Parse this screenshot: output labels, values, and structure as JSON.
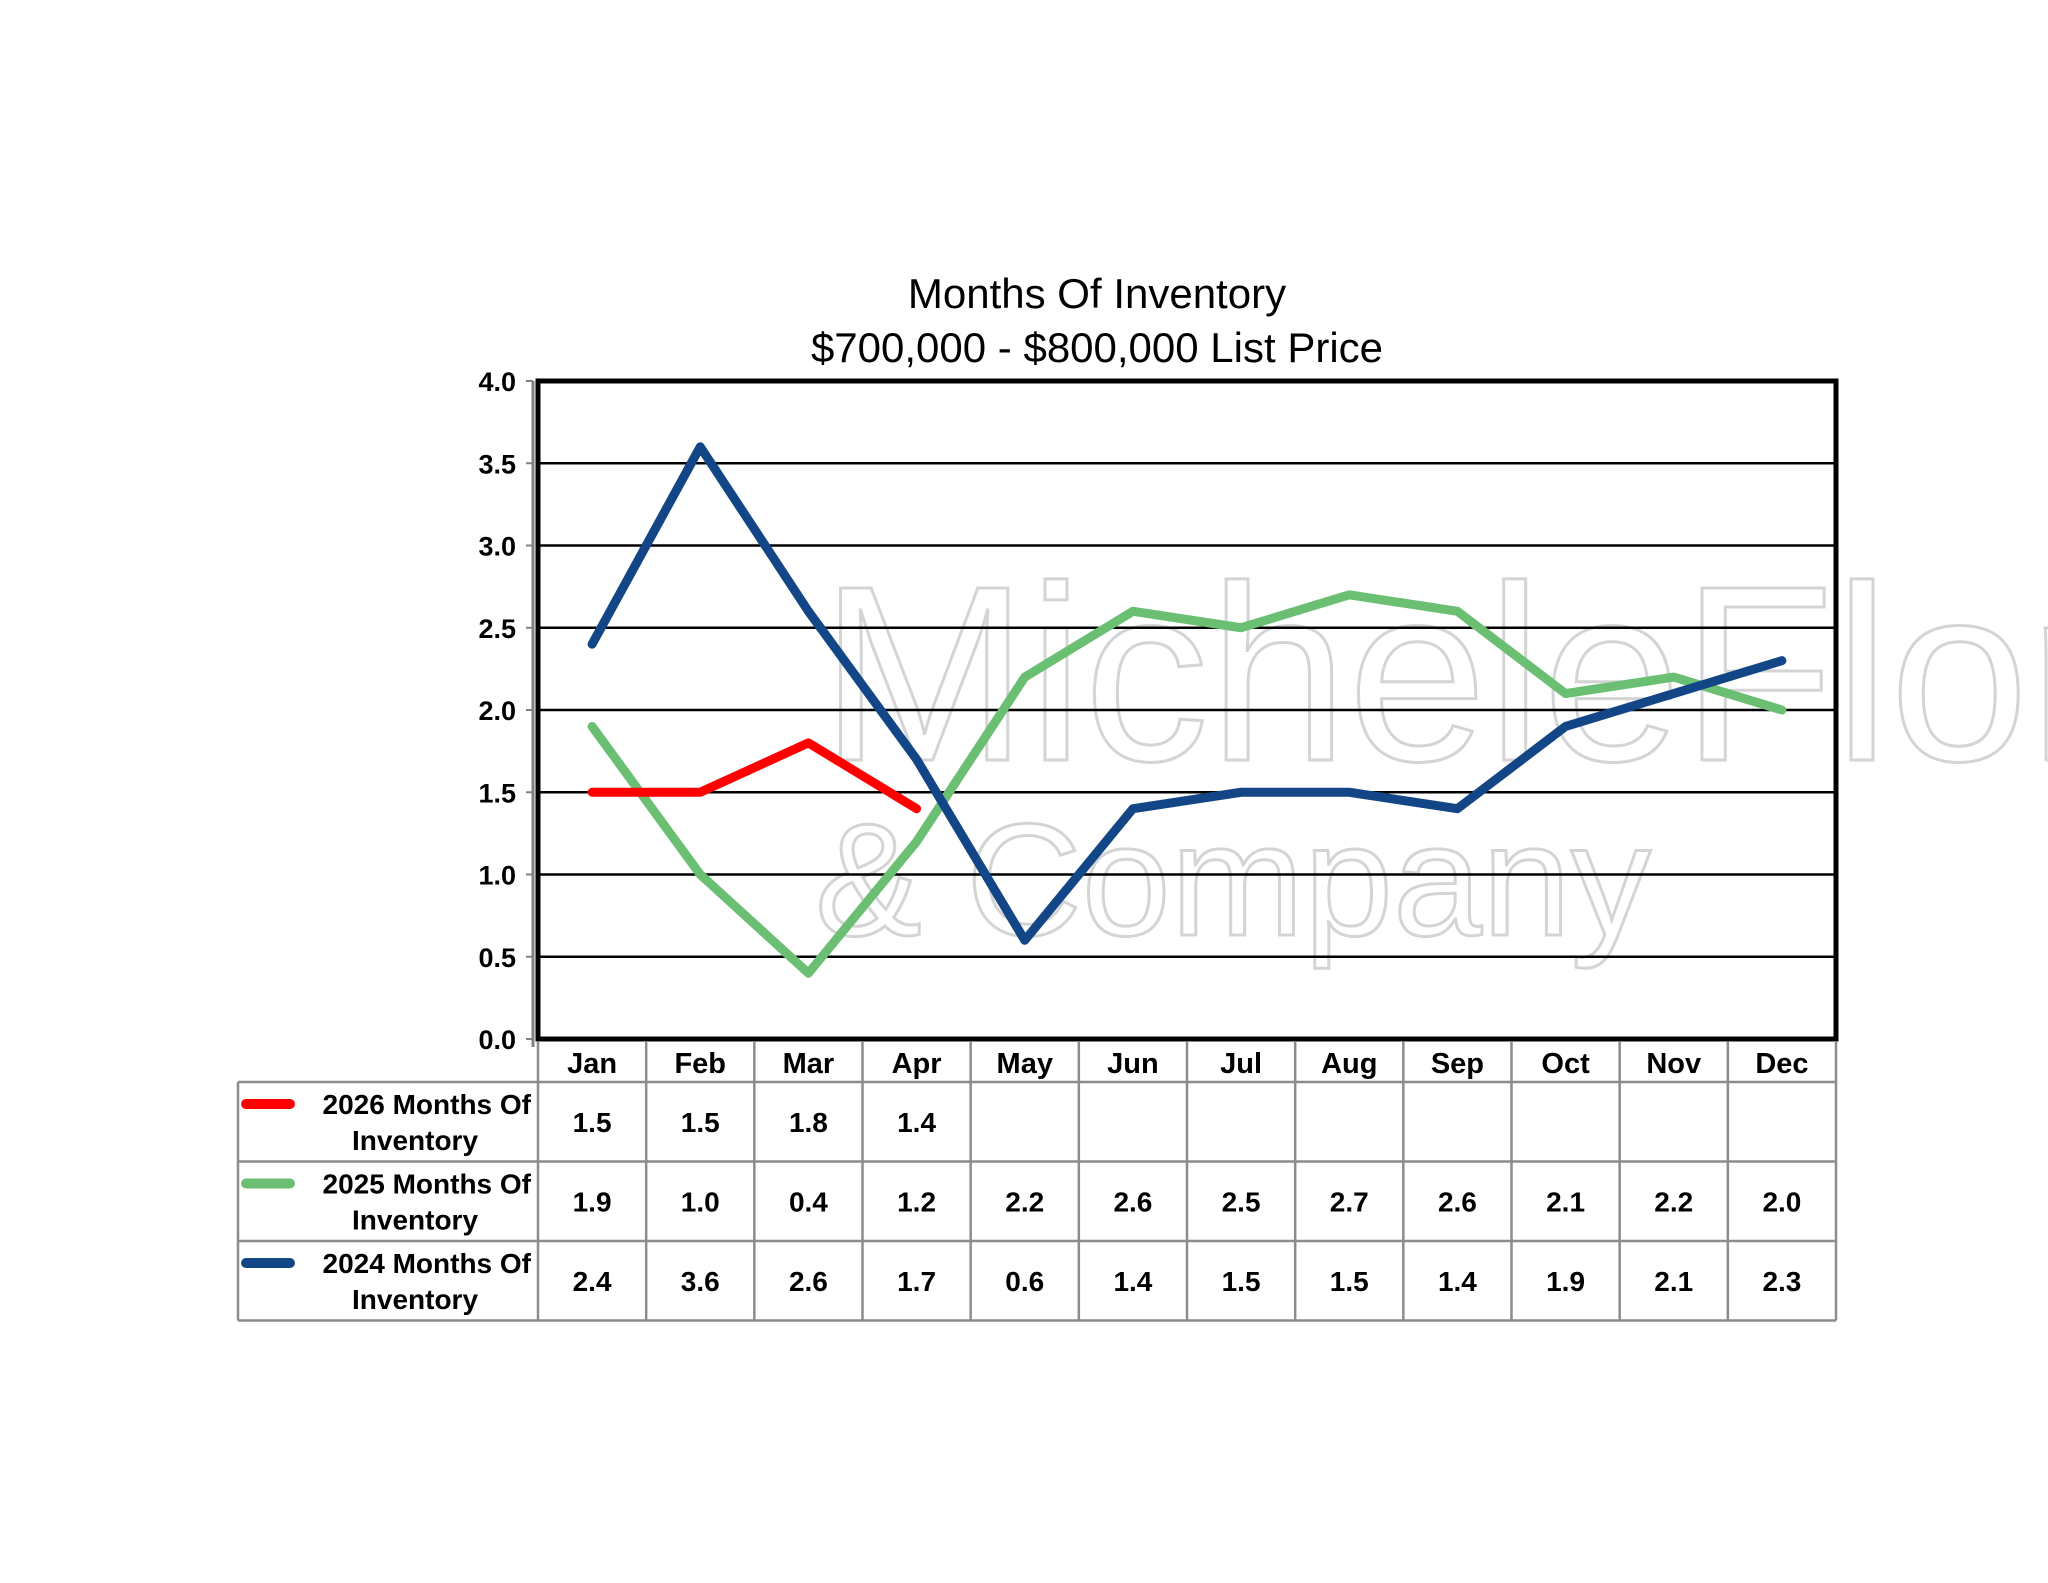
{
  "watermark": {
    "line1": "MicheleFlory",
    "line2": "& Company"
  },
  "chart_data": {
    "type": "line",
    "title": "Months Of Inventory",
    "subtitle": "$700,000 - $800,000 List Price",
    "xlabel": "",
    "ylabel": "",
    "categories": [
      "Jan",
      "Feb",
      "Mar",
      "Apr",
      "May",
      "Jun",
      "Jul",
      "Aug",
      "Sep",
      "Oct",
      "Nov",
      "Dec"
    ],
    "ylim": [
      0,
      4.0
    ],
    "yticks": [
      "0.0",
      "0.5",
      "1.0",
      "1.5",
      "2.0",
      "2.5",
      "3.0",
      "3.5",
      "4.0"
    ],
    "ytick_values": [
      0,
      0.5,
      1.0,
      1.5,
      2.0,
      2.5,
      3.0,
      3.5,
      4.0
    ],
    "grid": true,
    "legend_placement": "data-table-left",
    "series": [
      {
        "name": "2026 Months Of Inventory",
        "label_line1": "2026 Months Of",
        "label_line2": "Inventory",
        "color": "#ff0000",
        "values": [
          1.5,
          1.5,
          1.8,
          1.4,
          null,
          null,
          null,
          null,
          null,
          null,
          null,
          null
        ],
        "labels": [
          "1.5",
          "1.5",
          "1.8",
          "1.4",
          "",
          "",
          "",
          "",
          "",
          "",
          "",
          ""
        ]
      },
      {
        "name": "2025 Months Of Inventory",
        "label_line1": "2025 Months Of",
        "label_line2": "Inventory",
        "color": "#6abf73",
        "values": [
          1.9,
          1.0,
          0.4,
          1.2,
          2.2,
          2.6,
          2.5,
          2.7,
          2.6,
          2.1,
          2.2,
          2.0
        ],
        "labels": [
          "1.9",
          "1.0",
          "0.4",
          "1.2",
          "2.2",
          "2.6",
          "2.5",
          "2.7",
          "2.6",
          "2.1",
          "2.2",
          "2.0"
        ]
      },
      {
        "name": "2024 Months Of Inventory",
        "label_line1": "2024 Months Of",
        "label_line2": "Inventory",
        "color": "#134687",
        "values": [
          2.4,
          3.6,
          2.6,
          1.7,
          0.6,
          1.4,
          1.5,
          1.5,
          1.4,
          1.9,
          2.1,
          2.3
        ],
        "labels": [
          "2.4",
          "3.6",
          "2.6",
          "1.7",
          "0.6",
          "1.4",
          "1.5",
          "1.5",
          "1.4",
          "1.9",
          "2.1",
          "2.3"
        ]
      }
    ]
  }
}
